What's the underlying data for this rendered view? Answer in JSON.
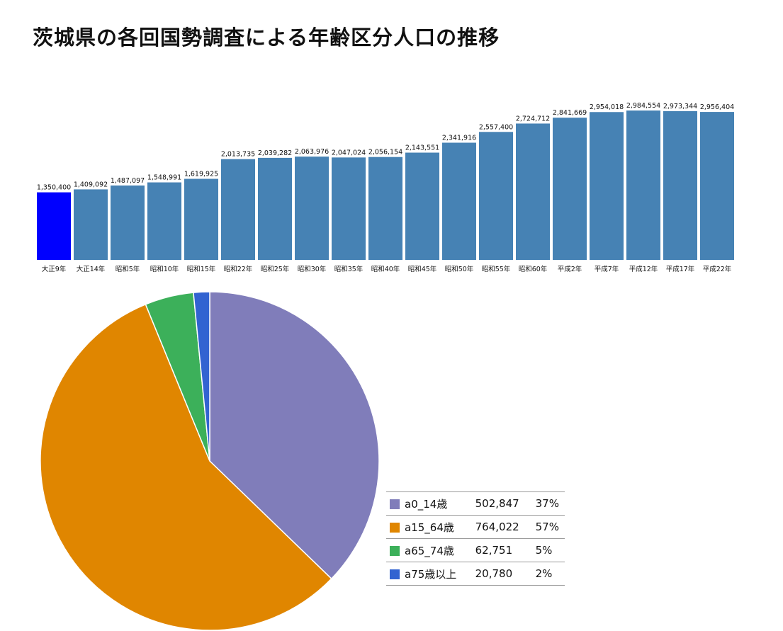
{
  "title": "茨城県の各回国勢調査による年齢区分人口の推移",
  "chart_data": [
    {
      "type": "bar",
      "categories": [
        "大正9年",
        "大正14年",
        "昭和5年",
        "昭和10年",
        "昭和15年",
        "昭和22年",
        "昭和25年",
        "昭和30年",
        "昭和35年",
        "昭和40年",
        "昭和45年",
        "昭和50年",
        "昭和55年",
        "昭和60年",
        "平成2年",
        "平成7年",
        "平成12年",
        "平成17年",
        "平成22年"
      ],
      "values": [
        1350400,
        1409092,
        1487097,
        1548991,
        1619925,
        2013735,
        2039282,
        2063976,
        2047024,
        2056154,
        2143551,
        2341916,
        2557400,
        2724712,
        2841669,
        2954018,
        2984554,
        2973344,
        2956404
      ],
      "value_labels": [
        "1,350,400",
        "1,409,092",
        "1,487,097",
        "1,548,991",
        "1,619,925",
        "2,013,735",
        "2,039,282",
        "2,063,976",
        "2,047,024",
        "2,056,154",
        "2,143,551",
        "2,341,916",
        "2,557,400",
        "2,724,712",
        "2,841,669",
        "2,954,018",
        "2,984,554",
        "2,973,344",
        "2,956,404"
      ],
      "highlight_index": 0,
      "colors": {
        "bar": "#4682b4",
        "highlight": "#0000ff"
      },
      "ylim": [
        0,
        3000000
      ],
      "grid": false
    },
    {
      "type": "pie",
      "labels": [
        "a0_14歳",
        "a15_64歳",
        "a65_74歳",
        "a75歳以上"
      ],
      "values": [
        502847,
        764022,
        62751,
        20780
      ],
      "value_labels": [
        "502,847",
        "764,022",
        "62,751",
        "20,780"
      ],
      "percent_labels": [
        "37%",
        "57%",
        "5%",
        "2%"
      ],
      "colors": [
        "#807dba",
        "#e08600",
        "#3cb05a",
        "#3263d1"
      ],
      "legend_position": "bottom-right"
    }
  ]
}
